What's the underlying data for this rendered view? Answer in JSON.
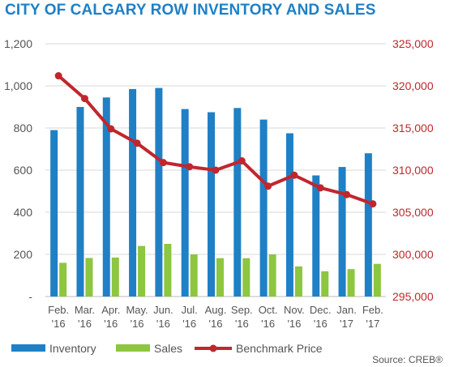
{
  "chart_data": {
    "type": "bar",
    "title": "CITY OF CALGARY ROW INVENTORY AND SALES",
    "categories": [
      [
        "Feb.",
        "'16"
      ],
      [
        "Mar.",
        "'16"
      ],
      [
        "Apr.",
        "'16"
      ],
      [
        "May.",
        "'16"
      ],
      [
        "Jun.",
        "'16"
      ],
      [
        "Jul.",
        "'16"
      ],
      [
        "Aug.",
        "'16"
      ],
      [
        "Sep.",
        "'16"
      ],
      [
        "Oct.",
        "'16"
      ],
      [
        "Nov.",
        "'16"
      ],
      [
        "Dec.",
        "'16"
      ],
      [
        "Jan.",
        "'17"
      ],
      [
        "Feb.",
        "'17"
      ]
    ],
    "series": [
      {
        "name": "Inventory",
        "type": "bar",
        "axis": "left",
        "color": "#1f80c6",
        "values": [
          790,
          900,
          945,
          985,
          990,
          890,
          875,
          895,
          840,
          775,
          575,
          615,
          680
        ]
      },
      {
        "name": "Sales",
        "type": "bar",
        "axis": "left",
        "color": "#8dc63f",
        "values": [
          160,
          183,
          185,
          240,
          250,
          200,
          182,
          182,
          200,
          143,
          120,
          130,
          155
        ]
      },
      {
        "name": "Benchmark Price",
        "type": "line",
        "axis": "right",
        "color": "#c0272d",
        "values": [
          321200,
          318500,
          314900,
          313200,
          310900,
          310400,
          310000,
          311100,
          308100,
          309400,
          307900,
          307100,
          306000
        ]
      }
    ],
    "yaxis_left": {
      "min": 0,
      "max": 1200,
      "step": 200,
      "ticks": [
        "-",
        "200",
        "400",
        "600",
        "800",
        "1,000",
        "1,200"
      ]
    },
    "yaxis_right": {
      "min": 295000,
      "max": 325000,
      "step": 5000,
      "ticks": [
        "295,000",
        "300,000",
        "305,000",
        "310,000",
        "315,000",
        "320,000",
        "325,000"
      ]
    },
    "legend_position": "bottom-left",
    "grid": true,
    "source": "Source: CREB®"
  }
}
